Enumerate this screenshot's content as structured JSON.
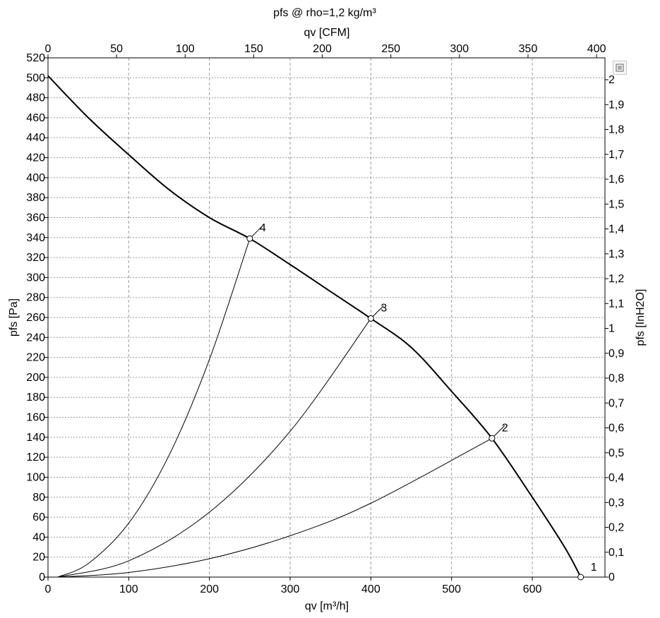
{
  "chart_data": {
    "type": "line",
    "title": "pfs @ rho=1,2 kg/m³",
    "xlabel": "qv [m³/h]",
    "x2label": "qv [CFM]",
    "ylabel": "pfs [Pa]",
    "y2label": "pfs [InH2O]",
    "xlim": [
      0,
      690
    ],
    "ylim": [
      0,
      520
    ],
    "x2lim": [
      0,
      406.1
    ],
    "y2lim": [
      0,
      2.088
    ],
    "x_ticks": [
      0,
      100,
      200,
      300,
      400,
      500,
      600
    ],
    "y_ticks": [
      0,
      20,
      40,
      60,
      80,
      100,
      120,
      140,
      160,
      180,
      200,
      220,
      240,
      260,
      280,
      300,
      320,
      340,
      360,
      380,
      400,
      420,
      440,
      460,
      480,
      500,
      520
    ],
    "x2_ticks": [
      0,
      50,
      100,
      150,
      200,
      250,
      300,
      350,
      400
    ],
    "y2_ticks": [
      "0",
      "0,1",
      "0,2",
      "0,3",
      "0,4",
      "0,5",
      "0,6",
      "0,7",
      "0,8",
      "0,9",
      "1",
      "1,1",
      "1,2",
      "1,3",
      "1,4",
      "1,5",
      "1,6",
      "1,7",
      "1,8",
      "1,9",
      "2"
    ],
    "grid": true,
    "series": [
      {
        "role": "fan-curve",
        "x": [
          0,
          50,
          100,
          150,
          200,
          250,
          300,
          350,
          400,
          450,
          500,
          550,
          600,
          640,
          660
        ],
        "y": [
          502,
          460,
          423,
          388,
          360,
          339,
          313,
          286,
          259,
          230,
          186,
          139,
          80,
          30,
          0
        ]
      },
      {
        "role": "system-curve",
        "x": [
          12,
          50,
          100,
          150,
          200,
          250
        ],
        "y": [
          0,
          13.6,
          54,
          122,
          218,
          339
        ]
      },
      {
        "role": "system-curve",
        "x": [
          12,
          100,
          200,
          300,
          400
        ],
        "y": [
          0,
          16.3,
          65,
          146,
          259
        ]
      },
      {
        "role": "system-curve",
        "x": [
          12,
          100,
          200,
          300,
          400,
          550
        ],
        "y": [
          0,
          4.6,
          18.4,
          41.4,
          74,
          139
        ]
      }
    ],
    "operating_points": [
      {
        "label": "1",
        "x": 660,
        "y": 0
      },
      {
        "label": "2",
        "x": 550,
        "y": 139
      },
      {
        "label": "3",
        "x": 400,
        "y": 259
      },
      {
        "label": "4",
        "x": 250,
        "y": 339
      }
    ]
  }
}
